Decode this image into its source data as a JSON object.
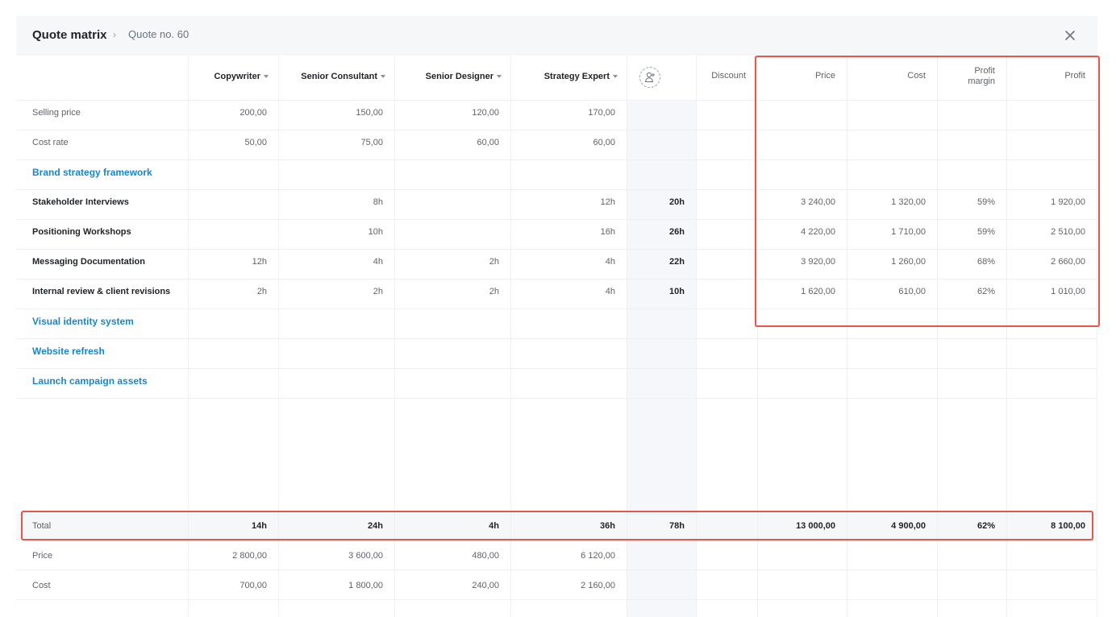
{
  "header": {
    "title": "Quote matrix",
    "breadcrumb_sep": "›",
    "breadcrumb": "Quote no. 60"
  },
  "columns": {
    "resources": [
      "Copywriter",
      "Senior Consultant",
      "Senior Designer",
      "Strategy Expert"
    ],
    "discount": "Discount",
    "price": "Price",
    "cost": "Cost",
    "profit_margin_1": "Profit",
    "profit_margin_2": "margin",
    "profit": "Profit"
  },
  "rates": {
    "selling_price_label": "Selling price",
    "selling_price": [
      "200,00",
      "150,00",
      "120,00",
      "170,00"
    ],
    "cost_rate_label": "Cost rate",
    "cost_rate": [
      "50,00",
      "75,00",
      "60,00",
      "60,00"
    ]
  },
  "groups": [
    {
      "name": "Brand strategy framework",
      "tasks": [
        {
          "name": "Stakeholder Interviews",
          "hours": [
            "",
            "8h",
            "",
            "12h"
          ],
          "total": "20h",
          "price": "3 240,00",
          "cost": "1 320,00",
          "margin": "59%",
          "profit": "1 920,00"
        },
        {
          "name": "Positioning Workshops",
          "hours": [
            "",
            "10h",
            "",
            "16h"
          ],
          "total": "26h",
          "price": "4 220,00",
          "cost": "1 710,00",
          "margin": "59%",
          "profit": "2 510,00"
        },
        {
          "name": "Messaging Documentation",
          "hours": [
            "12h",
            "4h",
            "2h",
            "4h"
          ],
          "total": "22h",
          "price": "3 920,00",
          "cost": "1 260,00",
          "margin": "68%",
          "profit": "2 660,00"
        },
        {
          "name": "Internal review & client revisions",
          "hours": [
            "2h",
            "2h",
            "2h",
            "4h"
          ],
          "total": "10h",
          "price": "1 620,00",
          "cost": "610,00",
          "margin": "62%",
          "profit": "1 010,00"
        }
      ]
    },
    {
      "name": "Visual identity system"
    },
    {
      "name": "Website refresh"
    },
    {
      "name": "Launch campaign assets"
    }
  ],
  "totals": {
    "label": "Total",
    "hours": [
      "14h",
      "24h",
      "4h",
      "36h"
    ],
    "total": "78h",
    "price": "13 000,00",
    "cost": "4 900,00",
    "margin": "62%",
    "profit": "8 100,00"
  },
  "footer": {
    "price_label": "Price",
    "price": [
      "2 800,00",
      "3 600,00",
      "480,00",
      "6 120,00"
    ],
    "cost_label": "Cost",
    "cost": [
      "700,00",
      "1 800,00",
      "240,00",
      "2 160,00"
    ]
  },
  "colors": {
    "link": "#1a86c9",
    "highlight": "#e4574a",
    "shade": "#f6f7fa"
  },
  "icons": {
    "close": "close-icon",
    "add_resource": "add-person-icon",
    "sort": "caret-down-icon"
  }
}
